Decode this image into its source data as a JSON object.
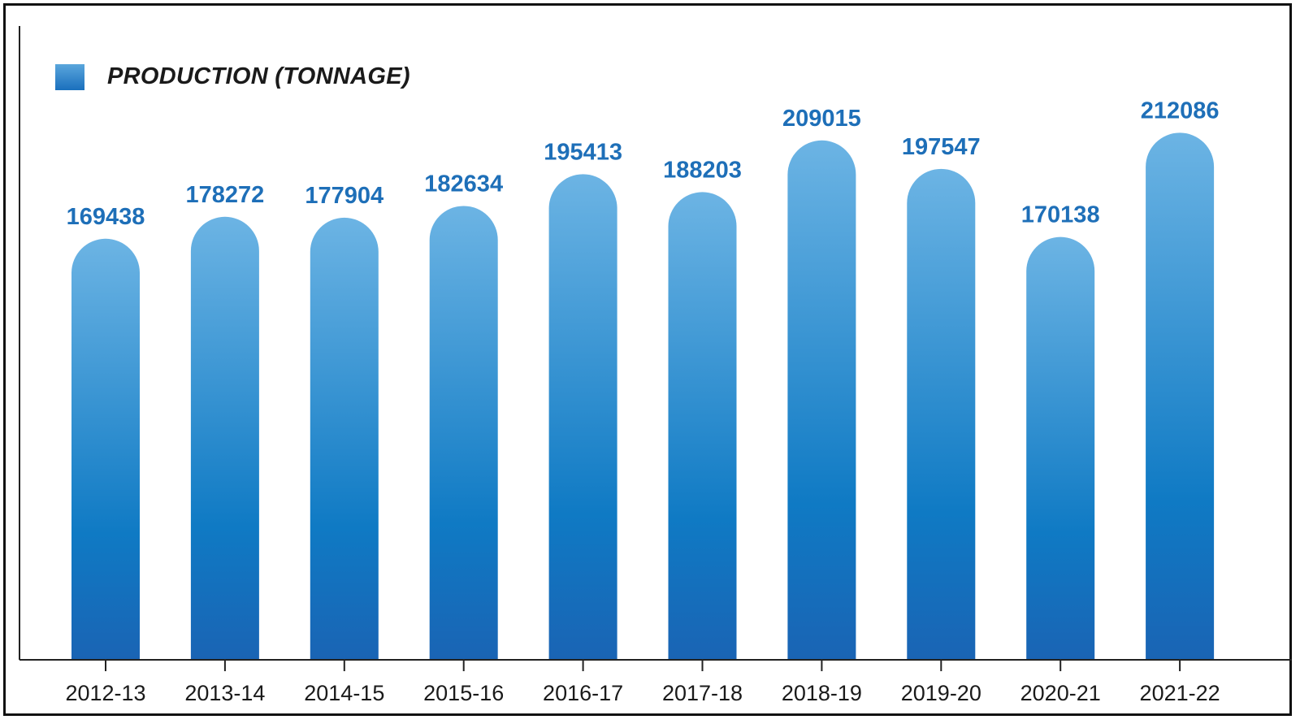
{
  "chart_data": {
    "type": "bar",
    "categories": [
      "2012-13",
      "2013-14",
      "2014-15",
      "2015-16",
      "2016-17",
      "2017-18",
      "2018-19",
      "2019-20",
      "2020-21",
      "2021-22"
    ],
    "series": [
      {
        "name": "PRODUCTION (TONNAGE)",
        "values": [
          169438,
          178272,
          177904,
          182634,
          195413,
          188203,
          209015,
          197547,
          170138,
          212086
        ]
      }
    ],
    "title": "",
    "xlabel": "",
    "ylabel": "",
    "ylim": [
      0,
      240000
    ],
    "grid": false,
    "legend": "top-left",
    "colors": {
      "bar_top": "#6cb4e4",
      "bar_bottom": "#1a64b4",
      "label": "#1e6fb8",
      "axis": "#222222"
    }
  }
}
